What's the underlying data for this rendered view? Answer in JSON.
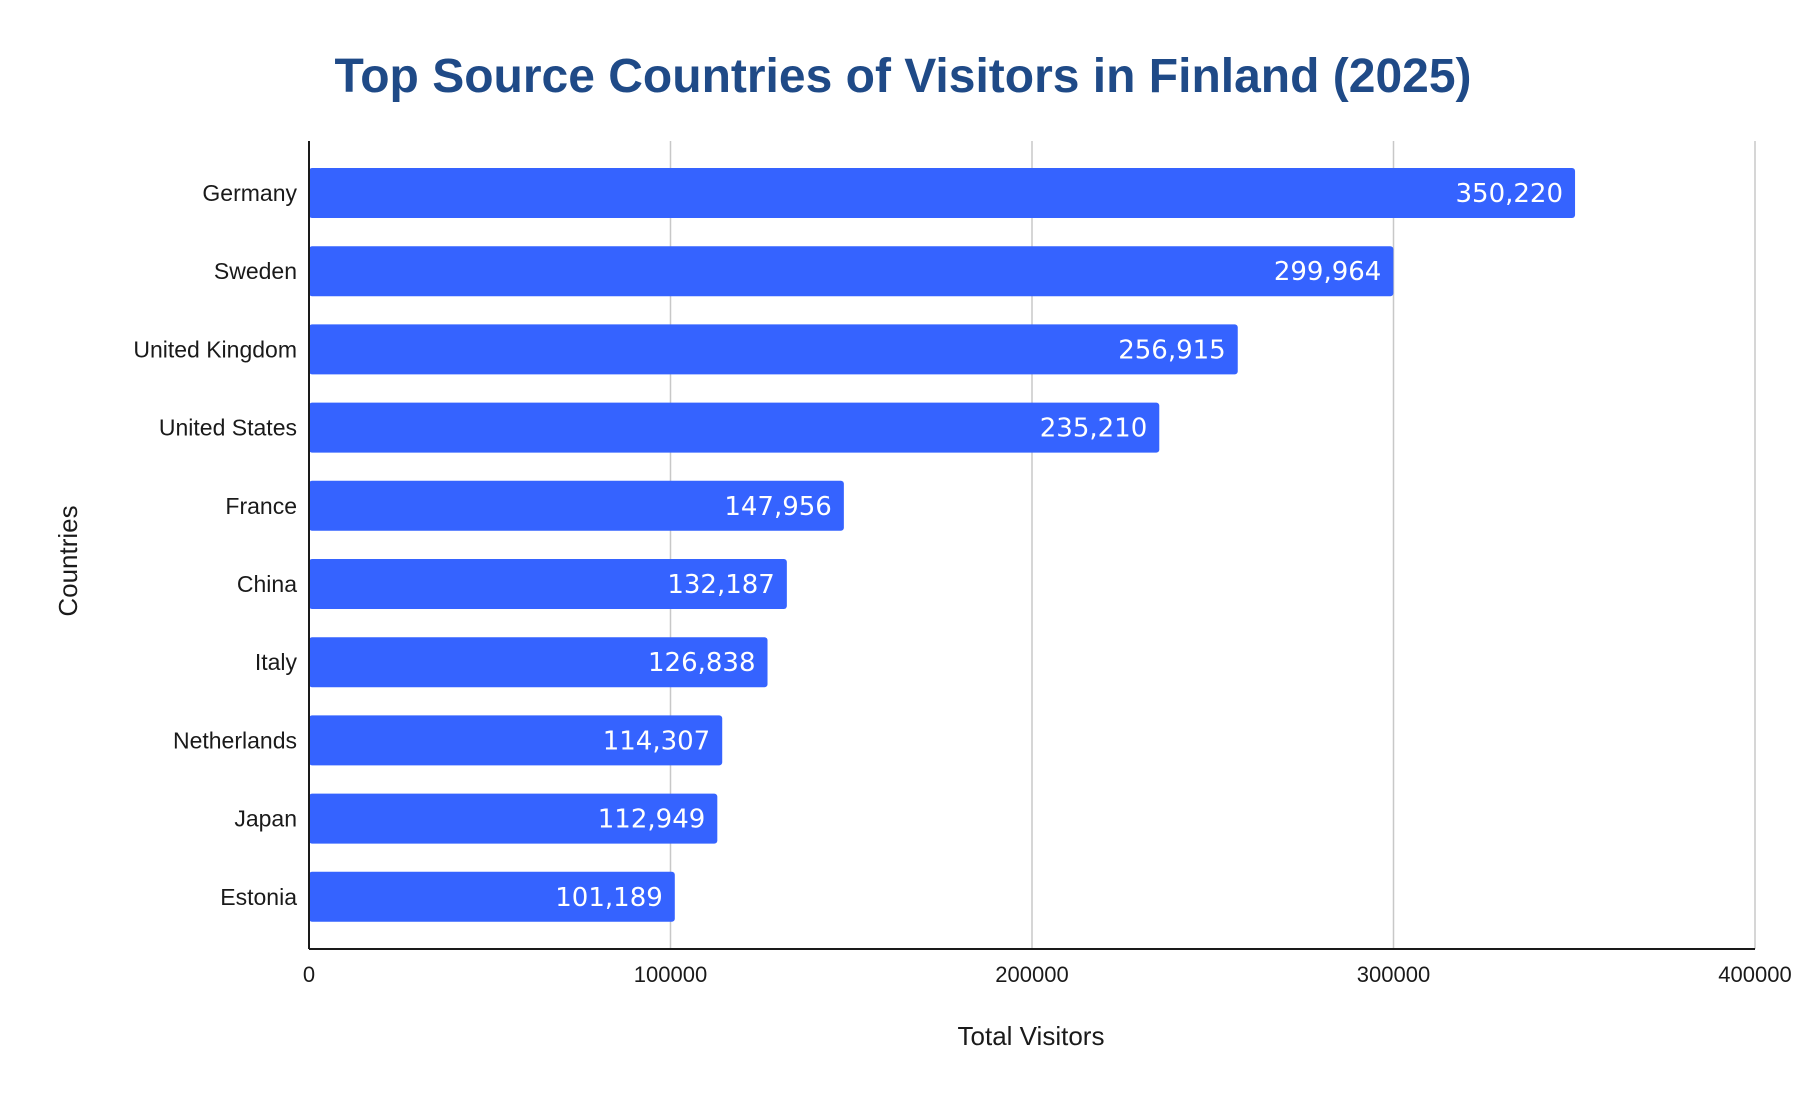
{
  "colors": {
    "title": "#1f4a87",
    "bar": "#3563ff",
    "gridline": "#c8c8c8",
    "axis": "#1a1a1a",
    "value_label": "#ffffff"
  },
  "chart_data": {
    "type": "bar",
    "orientation": "horizontal",
    "title": "Top Source Countries of Visitors in Finland (2025)",
    "xlabel": "Total Visitors",
    "ylabel": "Countries",
    "categories": [
      "Germany",
      "Sweden",
      "United Kingdom",
      "United States",
      "France",
      "China",
      "Italy",
      "Netherlands",
      "Japan",
      "Estonia"
    ],
    "values": [
      350220,
      299964,
      256915,
      235210,
      147956,
      132187,
      126838,
      114307,
      112949,
      101189
    ],
    "value_labels": [
      "350,220",
      "299,964",
      "256,915",
      "235,210",
      "147,956",
      "132,187",
      "126,838",
      "114,307",
      "112,949",
      "101,189"
    ],
    "xlim": [
      0,
      400000
    ],
    "xticks": [
      0,
      100000,
      200000,
      300000,
      400000
    ],
    "xtick_labels": [
      "0",
      "100000",
      "200000",
      "300000",
      "400000"
    ],
    "grid": "vertical",
    "legend": "none"
  }
}
